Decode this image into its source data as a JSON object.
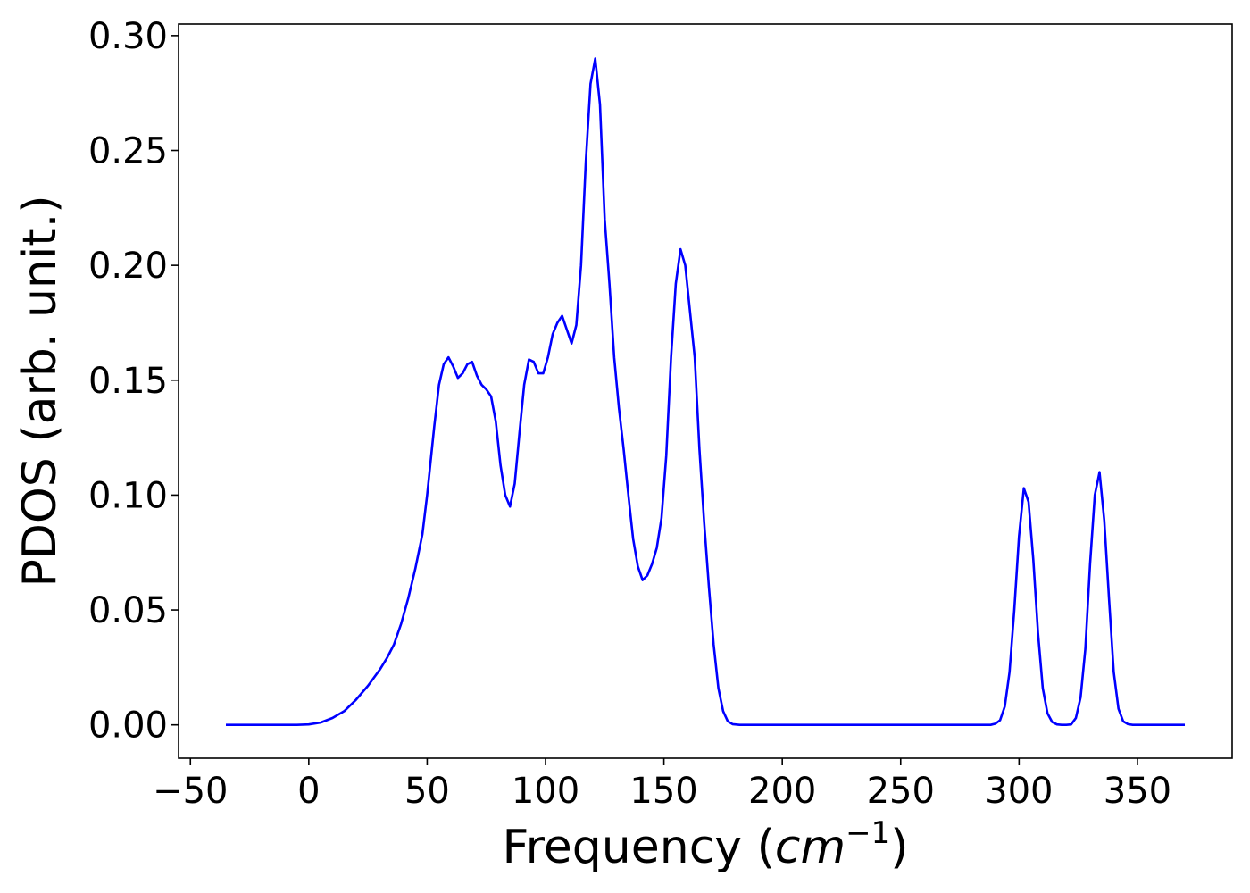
{
  "chart_data": {
    "type": "line",
    "title": "",
    "xlabel": "Frequency (",
    "xlabel_math": "cm",
    "xlabel_sup": "−1",
    "xlabel_end": ")",
    "ylabel": "PDOS (arb. unit.)",
    "xlim": [
      -55,
      390
    ],
    "ylim": [
      -0.0145,
      0.305
    ],
    "xticks": [
      -50,
      0,
      50,
      100,
      150,
      200,
      250,
      300,
      350
    ],
    "xtick_labels": [
      "−50",
      "0",
      "50",
      "100",
      "150",
      "200",
      "250",
      "300",
      "350"
    ],
    "yticks": [
      0.0,
      0.05,
      0.1,
      0.15,
      0.2,
      0.25,
      0.3
    ],
    "ytick_labels": [
      "0.00",
      "0.05",
      "0.10",
      "0.15",
      "0.20",
      "0.25",
      "0.30"
    ],
    "grid": false,
    "legend": null,
    "series": [
      {
        "color": "#0000ff",
        "points": [
          [
            -35,
            0.0
          ],
          [
            -20,
            0.0
          ],
          [
            -5,
            0.0
          ],
          [
            0,
            0.0002
          ],
          [
            5,
            0.001
          ],
          [
            10,
            0.003
          ],
          [
            15,
            0.006
          ],
          [
            20,
            0.011
          ],
          [
            25,
            0.017
          ],
          [
            30,
            0.024
          ],
          [
            33,
            0.029
          ],
          [
            36,
            0.035
          ],
          [
            39,
            0.044
          ],
          [
            42,
            0.055
          ],
          [
            45,
            0.068
          ],
          [
            48,
            0.083
          ],
          [
            50,
            0.1
          ],
          [
            53,
            0.13
          ],
          [
            55,
            0.148
          ],
          [
            57,
            0.157
          ],
          [
            59,
            0.16
          ],
          [
            61,
            0.156
          ],
          [
            63,
            0.151
          ],
          [
            65,
            0.153
          ],
          [
            67,
            0.157
          ],
          [
            69,
            0.158
          ],
          [
            71,
            0.152
          ],
          [
            73,
            0.148
          ],
          [
            75,
            0.146
          ],
          [
            77,
            0.143
          ],
          [
            79,
            0.132
          ],
          [
            81,
            0.113
          ],
          [
            83,
            0.1
          ],
          [
            85,
            0.095
          ],
          [
            87,
            0.105
          ],
          [
            89,
            0.127
          ],
          [
            91,
            0.148
          ],
          [
            93,
            0.159
          ],
          [
            95,
            0.158
          ],
          [
            97,
            0.153
          ],
          [
            99,
            0.153
          ],
          [
            101,
            0.16
          ],
          [
            103,
            0.17
          ],
          [
            105,
            0.175
          ],
          [
            107,
            0.178
          ],
          [
            109,
            0.172
          ],
          [
            111,
            0.166
          ],
          [
            113,
            0.174
          ],
          [
            115,
            0.2
          ],
          [
            117,
            0.245
          ],
          [
            119,
            0.279
          ],
          [
            121,
            0.29
          ],
          [
            123,
            0.27
          ],
          [
            125,
            0.22
          ],
          [
            127,
            0.192
          ],
          [
            129,
            0.16
          ],
          [
            131,
            0.138
          ],
          [
            133,
            0.12
          ],
          [
            135,
            0.1
          ],
          [
            137,
            0.081
          ],
          [
            139,
            0.069
          ],
          [
            141,
            0.063
          ],
          [
            143,
            0.065
          ],
          [
            145,
            0.07
          ],
          [
            147,
            0.077
          ],
          [
            149,
            0.09
          ],
          [
            151,
            0.117
          ],
          [
            153,
            0.16
          ],
          [
            155,
            0.192
          ],
          [
            157,
            0.207
          ],
          [
            159,
            0.2
          ],
          [
            161,
            0.18
          ],
          [
            163,
            0.16
          ],
          [
            165,
            0.12
          ],
          [
            167,
            0.088
          ],
          [
            169,
            0.06
          ],
          [
            171,
            0.035
          ],
          [
            173,
            0.016
          ],
          [
            175,
            0.006
          ],
          [
            177,
            0.0015
          ],
          [
            179,
            0.0003
          ],
          [
            182,
            0.0
          ],
          [
            200,
            0.0
          ],
          [
            250,
            0.0
          ],
          [
            288,
            0.0
          ],
          [
            290,
            0.0005
          ],
          [
            292,
            0.002
          ],
          [
            294,
            0.008
          ],
          [
            296,
            0.023
          ],
          [
            298,
            0.05
          ],
          [
            300,
            0.082
          ],
          [
            302,
            0.103
          ],
          [
            304,
            0.097
          ],
          [
            306,
            0.072
          ],
          [
            308,
            0.04
          ],
          [
            310,
            0.016
          ],
          [
            312,
            0.005
          ],
          [
            314,
            0.0012
          ],
          [
            316,
            0.0002
          ],
          [
            318,
            0.0
          ],
          [
            320,
            0.0
          ],
          [
            322,
            0.0002
          ],
          [
            324,
            0.003
          ],
          [
            326,
            0.012
          ],
          [
            328,
            0.033
          ],
          [
            330,
            0.07
          ],
          [
            332,
            0.1
          ],
          [
            334,
            0.11
          ],
          [
            336,
            0.089
          ],
          [
            338,
            0.055
          ],
          [
            340,
            0.023
          ],
          [
            342,
            0.007
          ],
          [
            344,
            0.0015
          ],
          [
            346,
            0.0003
          ],
          [
            348,
            0.0
          ],
          [
            360,
            0.0
          ],
          [
            370,
            0.0
          ]
        ]
      }
    ]
  }
}
